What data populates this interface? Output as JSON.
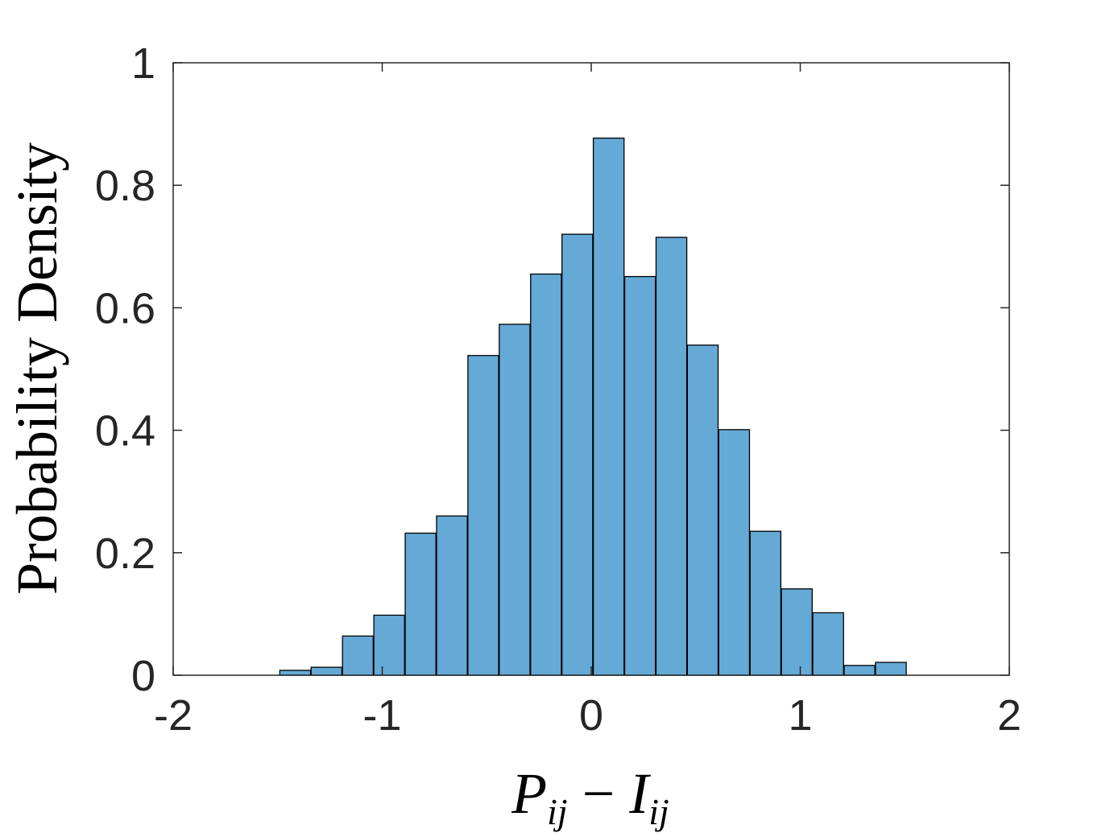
{
  "chart_data": {
    "type": "bar",
    "title": "",
    "xlabel": "P_ij − I_ij",
    "xlabel_parts": {
      "p": "P",
      "p_sub": "ij",
      "op": "−",
      "i": "I",
      "i_sub": "ij"
    },
    "ylabel": "Probability Density",
    "xlim": [
      -2,
      2
    ],
    "ylim": [
      0,
      1
    ],
    "xticks": [
      "-2",
      "-1",
      "0",
      "1",
      "2"
    ],
    "yticks": [
      "0",
      "0.2",
      "0.4",
      "0.6",
      "0.8",
      "1"
    ],
    "xtick_values": [
      -2,
      -1,
      0,
      1,
      2
    ],
    "ytick_values": [
      0,
      0.2,
      0.4,
      0.6,
      0.8,
      1
    ],
    "bin_edges": [
      -1.49,
      -1.34,
      -1.19,
      -1.04,
      -0.89,
      -0.74,
      -0.59,
      -0.44,
      -0.29,
      -0.14,
      0.01,
      0.16,
      0.31,
      0.46,
      0.61,
      0.76,
      0.91,
      1.06,
      1.21,
      1.36
    ],
    "bin_width": 0.147,
    "values": [
      0.008,
      0.013,
      0.064,
      0.098,
      0.232,
      0.26,
      0.522,
      0.573,
      0.655,
      0.72,
      0.877,
      0.651,
      0.715,
      0.539,
      0.401,
      0.235,
      0.141,
      0.102,
      0.016,
      0.021
    ],
    "grid": false,
    "bar_color": "#65a9d7",
    "edge_color": "#000000"
  }
}
